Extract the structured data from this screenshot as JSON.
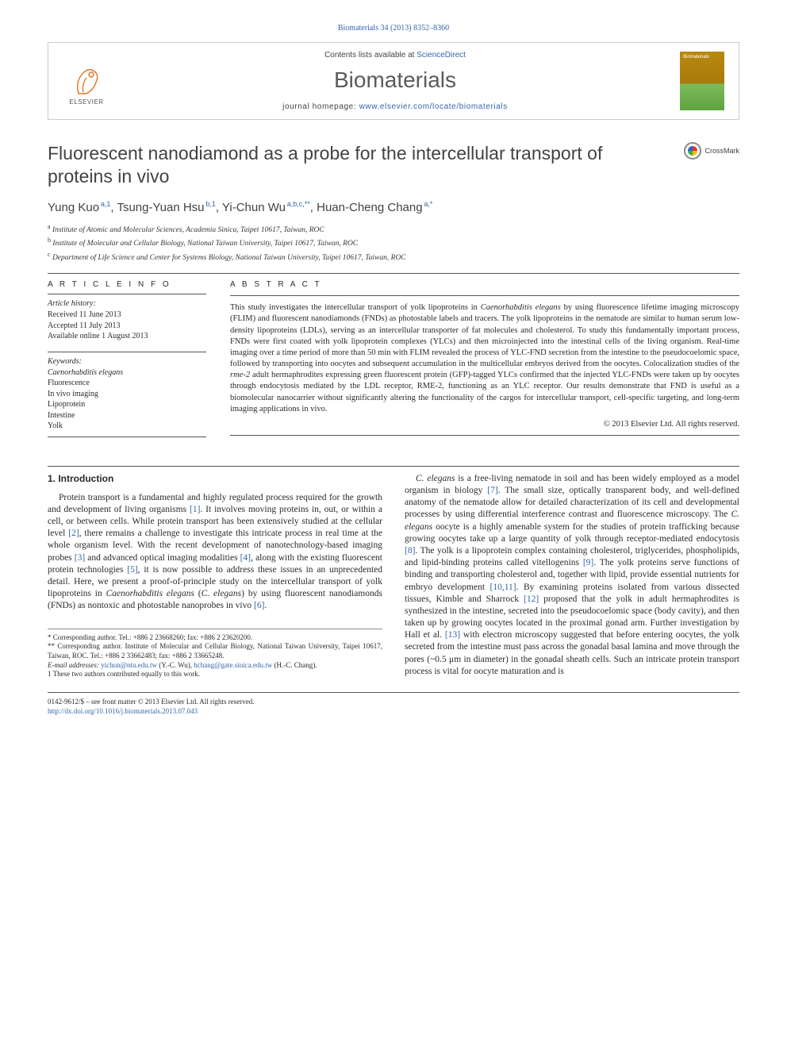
{
  "header": {
    "citation": "Biomaterials 34 (2013) 8352–8360",
    "contents_prefix": "Contents lists available at ",
    "contents_link": "ScienceDirect",
    "journal_name": "Biomaterials",
    "homepage_prefix": "journal homepage: ",
    "homepage_url": "www.elsevier.com/locate/biomaterials",
    "elsevier_brand": "ELSEVIER"
  },
  "crossmark_label": "CrossMark",
  "title": "Fluorescent nanodiamond as a probe for the intercellular transport of proteins in vivo",
  "authors_html": "Yung Kuo",
  "authors": [
    {
      "name": "Yung Kuo",
      "sup": "a,1"
    },
    {
      "name": "Tsung-Yuan Hsu",
      "sup": "b,1"
    },
    {
      "name": "Yi-Chun Wu",
      "sup": "a,b,c,**"
    },
    {
      "name": "Huan-Cheng Chang",
      "sup": "a,*"
    }
  ],
  "affiliations": [
    {
      "sup": "a",
      "text": "Institute of Atomic and Molecular Sciences, Academia Sinica, Taipei 10617, Taiwan, ROC"
    },
    {
      "sup": "b",
      "text": "Institute of Molecular and Cellular Biology, National Taiwan University, Taipei 10617, Taiwan, ROC"
    },
    {
      "sup": "c",
      "text": "Department of Life Science and Center for Systems Biology, National Taiwan University, Taipei 10617, Taiwan, ROC"
    }
  ],
  "info": {
    "article_info_head": "A R T I C L E   I N F O",
    "history_head": "Article history:",
    "history": [
      "Received 11 June 2013",
      "Accepted 11 July 2013",
      "Available online 1 August 2013"
    ],
    "keywords_head": "Keywords:",
    "keywords": [
      {
        "text": "Caenorhabditis elegans",
        "italic": true
      },
      {
        "text": "Fluorescence",
        "italic": false
      },
      {
        "text": "In vivo imaging",
        "italic": false
      },
      {
        "text": "Lipoprotein",
        "italic": false
      },
      {
        "text": "Intestine",
        "italic": false
      },
      {
        "text": "Yolk",
        "italic": false
      }
    ]
  },
  "abstract": {
    "head": "A B S T R A C T",
    "text_parts": [
      {
        "t": "This study investigates the intercellular transport of yolk lipoproteins in ",
        "i": false
      },
      {
        "t": "Caenorhabditis elegans",
        "i": true
      },
      {
        "t": " by using fluorescence lifetime imaging microscopy (FLIM) and fluorescent nanodiamonds (FNDs) as photostable labels and tracers. The yolk lipoproteins in the nematode are similar to human serum low-density lipoproteins (LDLs), serving as an intercellular transporter of fat molecules and cholesterol. To study this fundamentally important process, FNDs were first coated with yolk lipoprotein complexes (YLCs) and then microinjected into the intestinal cells of the living organism. Real-time imaging over a time period of more than 50 min with FLIM revealed the process of YLC-FND secretion from the intestine to the pseudocoelomic space, followed by transporting into oocytes and subsequent accumulation in the multicellular embryos derived from the oocytes. Colocalization studies of the ",
        "i": false
      },
      {
        "t": "rme-2",
        "i": true
      },
      {
        "t": " adult hermaphrodites expressing green fluorescent protein (GFP)-tagged YLCs confirmed that the injected YLC-FNDs were taken up by oocytes through endocytosis mediated by the LDL receptor, RME-2, functioning as an YLC receptor. Our results demonstrate that FND is useful as a biomolecular nanocarrier without significantly altering the functionality of the cargos for intercellular transport, cell-specific targeting, and long-term imaging applications in vivo.",
        "i": false
      }
    ],
    "copyright": "© 2013 Elsevier Ltd. All rights reserved."
  },
  "body": {
    "section_heading": "1.  Introduction",
    "col1_parts": [
      {
        "t": "Protein transport is a fundamental and highly regulated process required for the growth and development of living organisms "
      },
      {
        "t": "[1]",
        "ref": true
      },
      {
        "t": ". It involves moving proteins in, out, or within a cell, or between cells. While protein transport has been extensively studied at the cellular level "
      },
      {
        "t": "[2]",
        "ref": true
      },
      {
        "t": ", there remains a challenge to investigate this intricate process in real time at the whole organism level. With the recent development of nanotechnology-based imaging probes "
      },
      {
        "t": "[3]",
        "ref": true
      },
      {
        "t": " and advanced optical imaging modalities "
      },
      {
        "t": "[4]",
        "ref": true
      },
      {
        "t": ", along with the existing fluorescent protein technologies "
      },
      {
        "t": "[5]",
        "ref": true
      },
      {
        "t": ", it is now possible to address these issues in an unprecedented detail. Here, we present a proof-of-principle study on the intercellular transport of yolk lipoproteins in "
      },
      {
        "t": "Caenorhabditis elegans",
        "i": true
      },
      {
        "t": " ("
      },
      {
        "t": "C. elegans",
        "i": true
      },
      {
        "t": ") by using fluorescent nanodiamonds (FNDs) as nontoxic and photostable nanoprobes in vivo "
      },
      {
        "t": "[6]",
        "ref": true
      },
      {
        "t": "."
      }
    ],
    "col2_parts": [
      {
        "t": "C. elegans",
        "i": true
      },
      {
        "t": " is a free-living nematode in soil and has been widely employed as a model organism in biology "
      },
      {
        "t": "[7]",
        "ref": true
      },
      {
        "t": ". The small size, optically transparent body, and well-defined anatomy of the nematode allow for detailed characterization of its cell and developmental processes by using differential interference contrast and fluorescence microscopy. The "
      },
      {
        "t": "C. elegans",
        "i": true
      },
      {
        "t": " oocyte is a highly amenable system for the studies of protein trafficking because growing oocytes take up a large quantity of yolk through receptor-mediated endocytosis "
      },
      {
        "t": "[8]",
        "ref": true
      },
      {
        "t": ". The yolk is a lipoprotein complex containing cholesterol, triglycerides, phospholipids, and lipid-binding proteins called vitellogenins "
      },
      {
        "t": "[9]",
        "ref": true
      },
      {
        "t": ". The yolk proteins serve functions of binding and transporting cholesterol and, together with lipid, provide essential nutrients for embryo development "
      },
      {
        "t": "[10,11]",
        "ref": true
      },
      {
        "t": ". By examining proteins isolated from various dissected tissues, Kimble and Sharrock "
      },
      {
        "t": "[12]",
        "ref": true
      },
      {
        "t": " proposed that the yolk in adult hermaphrodites is synthesized in the intestine, secreted into the pseudocoelomic space (body cavity), and then taken up by growing oocytes located in the proximal gonad arm. Further investigation by Hall et al. "
      },
      {
        "t": "[13]",
        "ref": true
      },
      {
        "t": " with electron microscopy suggested that before entering oocytes, the yolk secreted from the intestine must pass across the gonadal basal lamina and move through the pores (~0.5 μm in diameter) in the gonadal sheath cells. Such an intricate protein transport process is vital for oocyte maturation and is"
      }
    ]
  },
  "footnotes": {
    "corr1": "* Corresponding author. Tel.: +886 2 23668260; fax: +886 2 23620200.",
    "corr2": "** Corresponding author. Institute of Molecular and Cellular Biology, National Taiwan University, Taipei 10617, Taiwan, ROC. Tel.: +886 2 33662483; fax: +886 2 33665248.",
    "email_label": "E-mail addresses:",
    "email1": "yichun@ntu.edu.tw",
    "email1_who": " (Y.-C. Wu), ",
    "email2": "hchang@gate.sinica.edu.tw",
    "email2_who": " (H.-C. Chang).",
    "equal": "1 These two authors contributed equally to this work."
  },
  "footer": {
    "front_matter": "0142-9612/$ – see front matter © 2013 Elsevier Ltd. All rights reserved.",
    "doi": "http://dx.doi.org/10.1016/j.biomaterials.2013.07.043"
  },
  "colors": {
    "link": "#3366aa",
    "text": "#2a2a2a",
    "logo_orange": "#e9711c",
    "rule": "#555555"
  }
}
